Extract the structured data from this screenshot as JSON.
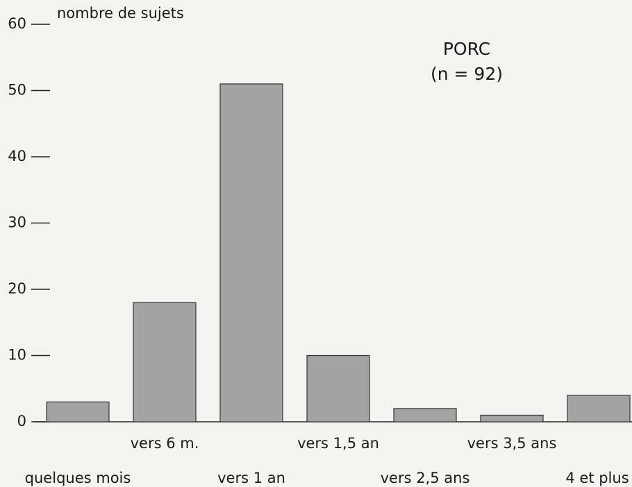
{
  "chart_data": {
    "type": "bar",
    "title": "PORC",
    "subtitle": "(n = 92)",
    "y_label": "nombre de sujets",
    "categories": [
      "quelques mois",
      "vers 6 m.",
      "vers 1 an",
      "vers 1,5 an",
      "vers 2,5 ans",
      "vers 3,5 ans",
      "4 et plus"
    ],
    "values": [
      3,
      18,
      51,
      10,
      2,
      1,
      4
    ],
    "color": "#a3a3a3",
    "ylim": [
      0,
      60
    ],
    "yticks": [
      0,
      10,
      20,
      30,
      40,
      50,
      60
    ]
  }
}
